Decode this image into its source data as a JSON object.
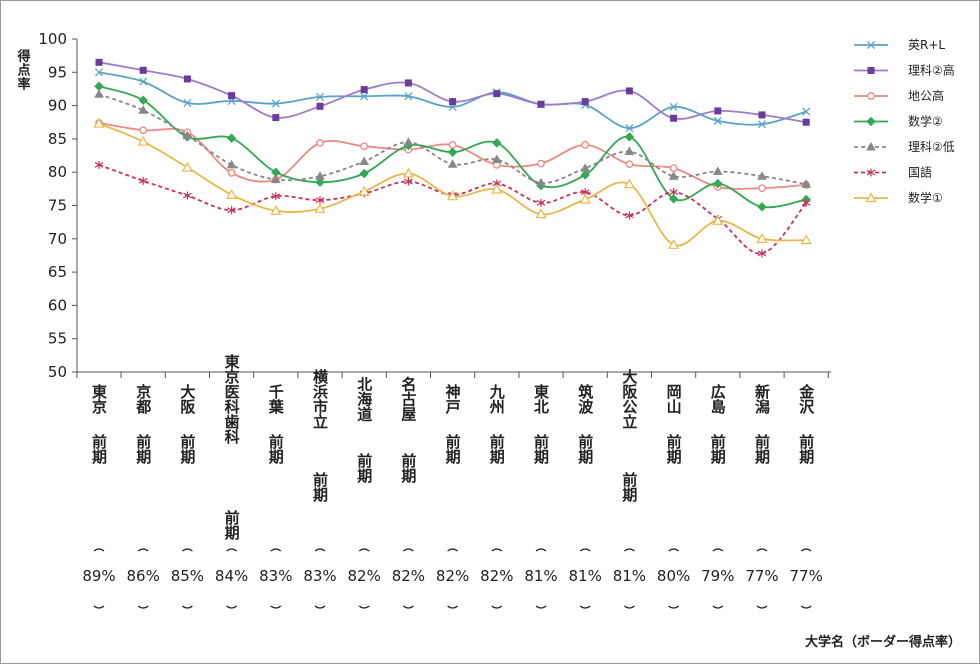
{
  "chart_data": {
    "type": "line",
    "ylabel": "得点率",
    "xlabel": "大学名（ボーダー得点率）",
    "ylim": [
      50,
      100
    ],
    "yticks": [
      50,
      55,
      60,
      65,
      70,
      75,
      80,
      85,
      90,
      95,
      100
    ],
    "grid": false,
    "legend_position": "right",
    "categories": [
      {
        "name": "東京",
        "exam": "前期",
        "border": "89%"
      },
      {
        "name": "京都",
        "exam": "前期",
        "border": "86%"
      },
      {
        "name": "大阪",
        "exam": "前期",
        "border": "85%"
      },
      {
        "name": "東京医科歯科",
        "exam": "前期",
        "border": "84%"
      },
      {
        "name": "千葉",
        "exam": "前期",
        "border": "83%"
      },
      {
        "name": "横浜市立",
        "exam": "前期",
        "border": "83%"
      },
      {
        "name": "北海道",
        "exam": "前期",
        "border": "82%"
      },
      {
        "name": "名古屋",
        "exam": "前期",
        "border": "82%"
      },
      {
        "name": "神戸",
        "exam": "前期",
        "border": "82%"
      },
      {
        "name": "九州",
        "exam": "前期",
        "border": "82%"
      },
      {
        "name": "東北",
        "exam": "前期",
        "border": "81%"
      },
      {
        "name": "筑波",
        "exam": "前期",
        "border": "81%"
      },
      {
        "name": "大阪公立",
        "exam": "前期",
        "border": "81%"
      },
      {
        "name": "岡山",
        "exam": "前期",
        "border": "80%"
      },
      {
        "name": "広島",
        "exam": "前期",
        "border": "79%"
      },
      {
        "name": "新潟",
        "exam": "前期",
        "border": "77%"
      },
      {
        "name": "金沢",
        "exam": "前期",
        "border": "77%"
      }
    ],
    "series": [
      {
        "name": "英R+L",
        "color": "#5ba3c5",
        "marker": "x",
        "dash": false,
        "values": [
          95.0,
          93.6,
          90.4,
          90.7,
          90.3,
          91.3,
          91.4,
          91.4,
          89.8,
          92.0,
          90.2,
          90.1,
          86.6,
          89.8,
          87.7,
          87.2,
          89.1
        ]
      },
      {
        "name": "理科②高",
        "color": "#a07cc8",
        "marker": "square",
        "dash": false,
        "values": [
          96.5,
          95.3,
          94.0,
          91.5,
          88.2,
          89.9,
          92.4,
          93.4,
          90.6,
          91.8,
          90.2,
          90.6,
          92.2,
          88.1,
          89.2,
          88.6,
          87.5
        ]
      },
      {
        "name": "地公高",
        "color": "#ea8a82",
        "marker": "circle",
        "dash": false,
        "values": [
          87.4,
          86.3,
          86.0,
          79.9,
          78.9,
          84.4,
          83.9,
          83.4,
          84.1,
          81.1,
          81.3,
          84.1,
          81.2,
          80.6,
          77.8,
          77.6,
          78.1
        ]
      },
      {
        "name": "数学②",
        "color": "#34a853",
        "marker": "diamond",
        "dash": false,
        "values": [
          92.9,
          90.8,
          85.3,
          85.1,
          80.0,
          78.5,
          79.8,
          84.0,
          83.0,
          84.4,
          78.0,
          79.6,
          85.3,
          76.0,
          78.3,
          74.8,
          75.9
        ]
      },
      {
        "name": "理科②低",
        "color": "#888888",
        "marker": "triangle",
        "dash": true,
        "values": [
          91.7,
          89.3,
          85.5,
          81.1,
          78.9,
          79.4,
          81.6,
          84.5,
          81.2,
          81.9,
          78.4,
          80.6,
          83.1,
          79.4,
          80.1,
          79.4,
          78.2
        ]
      },
      {
        "name": "国語",
        "color": "#c8325a",
        "marker": "asterisk",
        "dash": true,
        "values": [
          81.1,
          78.7,
          76.5,
          74.3,
          76.4,
          75.8,
          76.8,
          78.6,
          76.6,
          78.3,
          75.4,
          77.0,
          73.5,
          77.0,
          73.0,
          67.8,
          75.4
        ]
      },
      {
        "name": "数学①",
        "color": "#e8b84b",
        "marker": "triangle-open",
        "dash": false,
        "values": [
          87.3,
          84.6,
          80.7,
          76.6,
          74.2,
          74.5,
          77.1,
          79.8,
          76.4,
          77.4,
          73.7,
          75.9,
          78.2,
          69.1,
          72.7,
          70.0,
          69.8
        ]
      }
    ]
  }
}
